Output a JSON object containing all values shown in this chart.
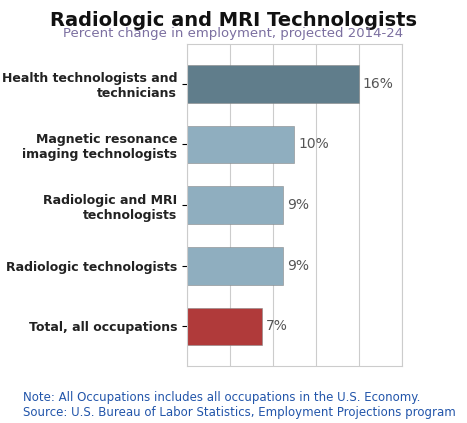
{
  "title": "Radiologic and MRI Technologists",
  "subtitle": "Percent change in employment, projected 2014-24",
  "categories": [
    "Total, all occupations",
    "Radiologic technologists",
    "Radiologic and MRI\ntechnologists",
    "Magnetic resonance\nimaging technologists",
    "Health technologists and\ntechnicians"
  ],
  "values": [
    7,
    9,
    9,
    10,
    16
  ],
  "bar_colors": [
    "#b03a3a",
    "#8faebf",
    "#8faebf",
    "#8faebf",
    "#607d8b"
  ],
  "label_texts": [
    "7%",
    "9%",
    "9%",
    "10%",
    "16%"
  ],
  "xlim": [
    0,
    20
  ],
  "note_text": "Note: All Occupations includes all occupations in the U.S. Economy.",
  "source_text": "Source: U.S. Bureau of Labor Statistics, Employment Projections program",
  "note_color": "#2255aa",
  "background_color": "#ffffff",
  "plot_bg_color": "#ffffff",
  "title_fontsize": 14,
  "subtitle_fontsize": 9.5,
  "label_fontsize": 10,
  "tick_fontsize": 9,
  "note_fontsize": 8.5,
  "subtitle_color": "#7b6fa0",
  "grid_color": "#cccccc",
  "tick_color": "#222222",
  "label_color": "#555555"
}
